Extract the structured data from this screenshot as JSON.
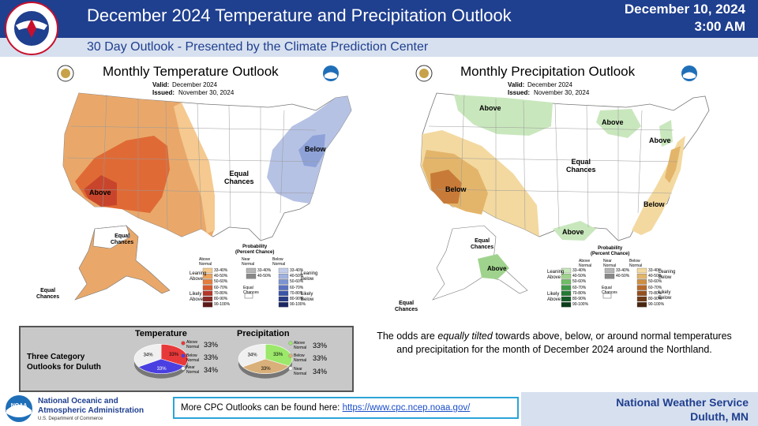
{
  "header": {
    "title": "December 2024 Temperature and Precipitation Outlook",
    "date_line1": "December 10, 2024",
    "date_line2": "3:00 AM",
    "subtitle": "30 Day Outlook - Presented by the Climate Prediction Center",
    "logo_text": "NATIONAL WEATHER SERVICE"
  },
  "temperature_map": {
    "title": "Monthly Temperature Outlook",
    "valid_label": "Valid:",
    "valid_value": "December 2024",
    "issued_label": "Issued:",
    "issued_value": "November 30, 2024",
    "labels": {
      "above": "Above",
      "below": "Below",
      "equal_chances_main_1": "Equal",
      "equal_chances_main_2": "Chances",
      "equal_chances_ak_1": "Equal",
      "equal_chances_ak_2": "Chances",
      "equal_chances_sw_1": "Equal",
      "equal_chances_sw_2": "Chances"
    },
    "legend": {
      "title_1": "Probability",
      "title_2": "(Percent Chance)",
      "col_above_1": "Above",
      "col_above_2": "Normal",
      "col_near_1": "Near",
      "col_near_2": "Normal",
      "col_below_1": "Below",
      "col_below_2": "Normal",
      "leaning_above_1": "Leaning",
      "leaning_above_2": "Above",
      "likely_above_1": "Likely",
      "likely_above_2": "Above",
      "leaning_below_1": "Leaning",
      "leaning_below_2": "Below",
      "likely_below_1": "Likely",
      "likely_below_2": "Below",
      "equal_chances_1": "Equal",
      "equal_chances_2": "Chances",
      "bins": [
        "33-40%",
        "40-50%",
        "50-60%",
        "60-70%",
        "70-80%",
        "80-90%",
        "90-100%"
      ],
      "near_bins": [
        "33-40%",
        "40-50%"
      ],
      "above_colors": [
        "#f5c98f",
        "#eda35d",
        "#e57e3c",
        "#d65a2c",
        "#b5372a",
        "#8c2b25",
        "#5e1a18"
      ],
      "below_colors": [
        "#c3cde9",
        "#9fb1df",
        "#7b95d2",
        "#5a72c0",
        "#3a54a8",
        "#293b86",
        "#1c2762"
      ],
      "near_colors": [
        "#b5b5b5",
        "#888888"
      ]
    }
  },
  "precipitation_map": {
    "title": "Monthly Precipitation Outlook",
    "valid_label": "Valid:",
    "valid_value": "December 2024",
    "issued_label": "Issued:",
    "issued_value": "November 30, 2024",
    "labels": {
      "above_north": "Above",
      "above_gl": "Above",
      "above_ne": "Above",
      "above_gulf": "Above",
      "above_ak": "Above",
      "below_sw": "Below",
      "below_se": "Below",
      "equal_chances_main_1": "Equal",
      "equal_chances_main_2": "Chances",
      "equal_chances_ak_1": "Equal",
      "equal_chances_ak_2": "Chances",
      "equal_chances_sw_1": "Equal",
      "equal_chances_sw_2": "Chances"
    },
    "legend": {
      "title_1": "Probability",
      "title_2": "(Percent Chance)",
      "col_above_1": "Above",
      "col_above_2": "Normal",
      "col_near_1": "Near",
      "col_near_2": "Normal",
      "col_below_1": "Below",
      "col_below_2": "Normal",
      "leaning_above_1": "Leaning",
      "leaning_above_2": "Above",
      "likely_above_1": "Likely",
      "likely_above_2": "Above",
      "leaning_below_1": "Leaning",
      "leaning_below_2": "Below",
      "likely_below_1": "Likely",
      "likely_below_2": "Below",
      "equal_chances_1": "Equal",
      "equal_chances_2": "Chances",
      "bins": [
        "33-40%",
        "40-50%",
        "50-60%",
        "60-70%",
        "70-80%",
        "80-90%",
        "90-100%"
      ],
      "near_bins": [
        "33-40%",
        "40-50%"
      ],
      "above_colors": [
        "#c9e7bd",
        "#9fd38d",
        "#6fbd64",
        "#3f9a47",
        "#237a36",
        "#145c28",
        "#0b3d1a"
      ],
      "below_colors": [
        "#f3d9a0",
        "#e3b56a",
        "#cf8f42",
        "#b86a2a",
        "#94501f",
        "#6f3a17",
        "#4a2610"
      ],
      "near_colors": [
        "#b5b5b5",
        "#888888"
      ]
    }
  },
  "duluth_box": {
    "label_1": "Three Category",
    "label_2": "Outlooks for Duluth",
    "temperature": {
      "title": "Temperature",
      "slices": [
        {
          "category_1": "Above",
          "category_2": "Normal",
          "value": 33,
          "label": "33%",
          "color": "#e8393a"
        },
        {
          "category_1": "Below",
          "category_2": "Normal",
          "value": 33,
          "label": "33%",
          "color": "#4a3fe0"
        },
        {
          "category_1": "Near",
          "category_2": "Normal",
          "value": 34,
          "label": "34%",
          "color": "#f0f0f0"
        }
      ]
    },
    "precipitation": {
      "title": "Precipitation",
      "slices": [
        {
          "category_1": "Above",
          "category_2": "Normal",
          "value": 33,
          "label": "33%",
          "color": "#9be86a"
        },
        {
          "category_1": "Below",
          "category_2": "Normal",
          "value": 33,
          "label": "33%",
          "color": "#d9b07a"
        },
        {
          "category_1": "Near",
          "category_2": "Normal",
          "value": 34,
          "label": "34%",
          "color": "#f0f0f0"
        }
      ]
    }
  },
  "explanation": {
    "part1": "The odds are ",
    "emphasis": "equally tilted",
    "part2": " towards above, below, or around normal temperatures and precipitation for the month of December 2024 around the Northland."
  },
  "footer": {
    "noaa_name_1": "National Oceanic and",
    "noaa_name_2": "Atmospheric Administration",
    "noaa_dept": "U.S. Department of Commerce",
    "noaa_logo_text": "NOAA",
    "link_prefix": "More CPC Outlooks can be found here: ",
    "link_url": "https://www.cpc.ncep.noaa.gov/",
    "nws_name": "National Weather Service",
    "nws_location": "Duluth, MN"
  }
}
